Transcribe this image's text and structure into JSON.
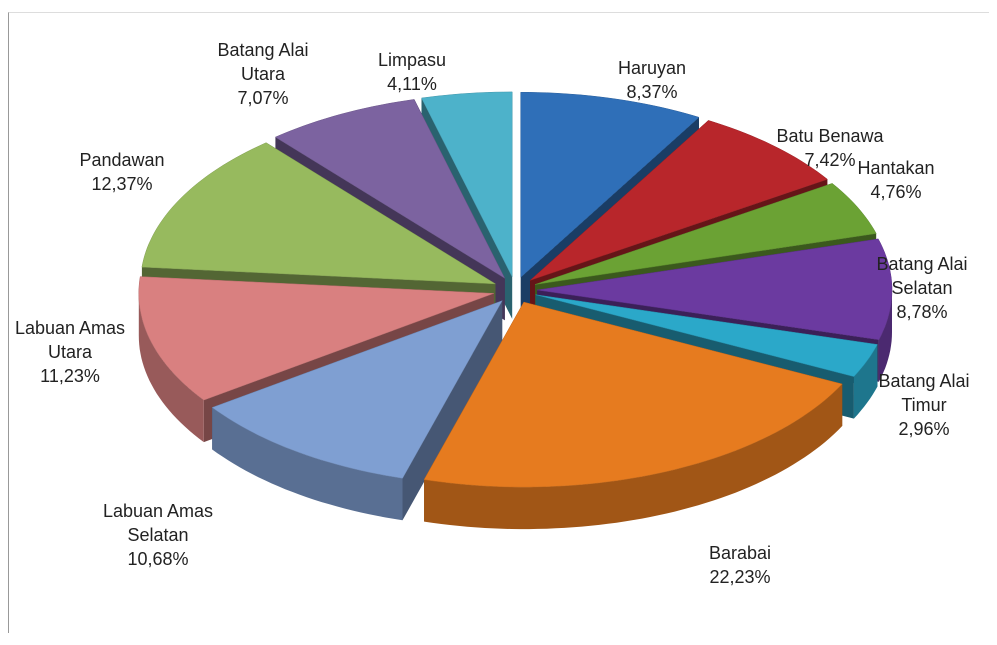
{
  "chart_data": {
    "type": "pie3d",
    "categories": [
      "Haruyan",
      "Batu Benawa",
      "Hantakan",
      "Batang Alai Selatan",
      "Batang Alai Timur",
      "Barabai",
      "Labuan Amas Selatan",
      "Labuan Amas Utara",
      "Pandawan",
      "Batang Alai Utara",
      "Limpasu"
    ],
    "values": [
      8.37,
      7.42,
      4.76,
      8.78,
      2.96,
      22.23,
      10.68,
      11.23,
      12.37,
      7.07,
      4.11
    ],
    "value_labels": [
      "8,37%",
      "7,42%",
      "4,76%",
      "8,78%",
      "2,96%",
      "22,23%",
      "10,68%",
      "11,23%",
      "12,37%",
      "7,07%",
      "4,11%"
    ],
    "colors": [
      "#2f6fb8",
      "#b8262b",
      "#6ba234",
      "#6b3aa0",
      "#2ba8c9",
      "#e67b1f",
      "#7f9fd2",
      "#d98080",
      "#97ba5e",
      "#7c63a0",
      "#4db2ca"
    ]
  }
}
